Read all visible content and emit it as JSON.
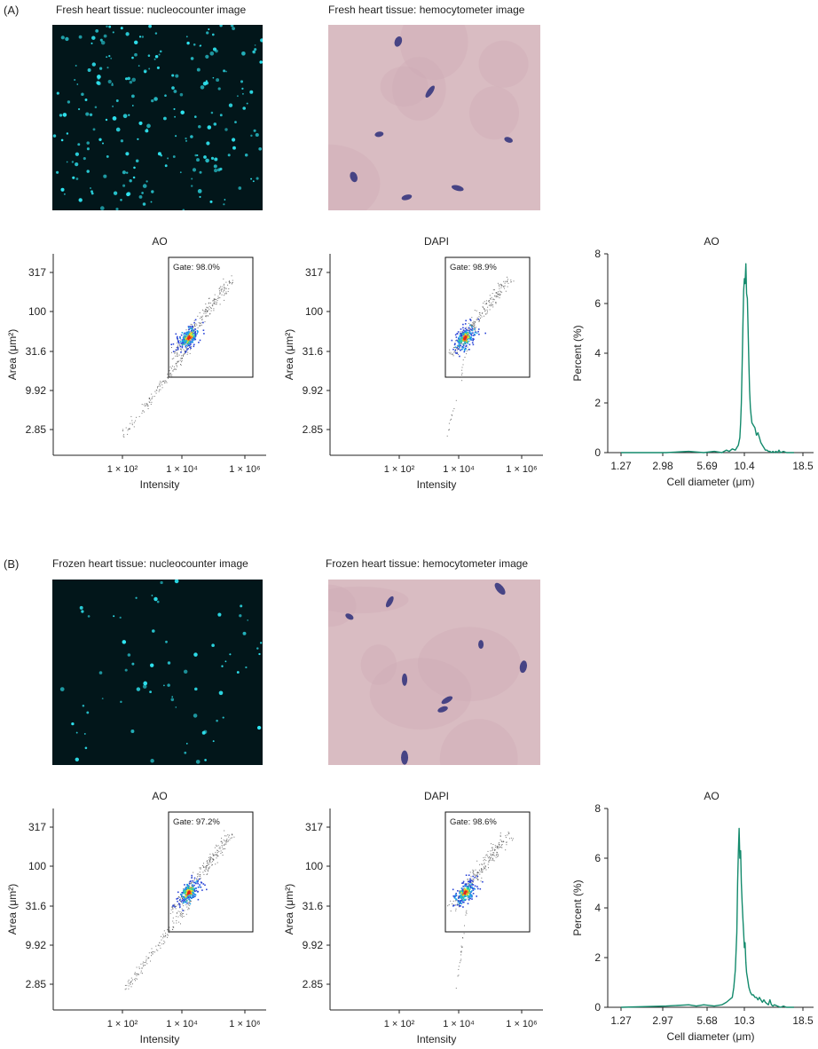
{
  "colors": {
    "fluo_bg": "#02161a",
    "fluo_dot": "#2fe6f2",
    "hemo_bg": "#d9bcc2",
    "hemo_cell": "#2d2f7a",
    "line": "#138a6c",
    "axis": "#222222",
    "gate_box": "#111111"
  },
  "panels": [
    {
      "label": "(A)",
      "nucleo_title": "Fresh heart tissue: nucleocounter image",
      "hemo_title": "Fresh heart tissue: hemocytometer image",
      "scatter_ao": {
        "title": "AO",
        "gate": "Gate: 98.0%",
        "xlabel": "Intensity",
        "ylabel": "Area (μm²)",
        "yticks": [
          "317",
          "100",
          "31.6",
          "9.92",
          "2.85"
        ],
        "xticks": [
          "1 × 10²",
          "1 × 10⁴",
          "1 × 10⁶"
        ],
        "tail_from_intensity": 100
      },
      "scatter_dapi": {
        "title": "DAPI",
        "gate": "Gate: 98.9%",
        "xlabel": "Intensity",
        "ylabel": "Area (μm²)",
        "yticks": [
          "317",
          "100",
          "31.6",
          "9.92",
          "2.85"
        ],
        "xticks": [
          "1 × 10²",
          "1 × 10⁴",
          "1 × 10⁶"
        ],
        "tail_from_intensity": 4000
      },
      "chart_data": {
        "type": "line",
        "title": "AO",
        "xlabel": "Cell diameter (μm)",
        "ylabel": "Percent (%)",
        "xtick_labels": [
          "1.27",
          "2.98",
          "5.69",
          "10.4",
          "18.5"
        ],
        "yticks": [
          0,
          2,
          4,
          6,
          8
        ],
        "ylim": [
          0,
          8
        ],
        "x_index": [
          0.0,
          0.3,
          0.45,
          0.55,
          0.62,
          0.67,
          0.7,
          0.72,
          0.74,
          0.76,
          0.77,
          0.78,
          0.79,
          0.795,
          0.8,
          0.805,
          0.81,
          0.815,
          0.82,
          0.825,
          0.83,
          0.835,
          0.84,
          0.845,
          0.85,
          0.855,
          0.86,
          0.865,
          0.87,
          0.88,
          0.89,
          0.9,
          0.91,
          0.92,
          0.93,
          0.94,
          0.95,
          0.96,
          0.97,
          0.98,
          0.99,
          1.0,
          1.01,
          1.02,
          1.03,
          1.04,
          1.05,
          1.06,
          1.08,
          1.1,
          1.12,
          1.15
        ],
        "values": [
          0.0,
          0.0,
          0.05,
          0.0,
          0.05,
          0.0,
          0.1,
          0.05,
          0.15,
          0.1,
          0.2,
          0.3,
          0.6,
          1.2,
          2.0,
          3.5,
          5.0,
          6.5,
          7.0,
          6.8,
          7.6,
          6.4,
          6.2,
          5.0,
          3.6,
          2.5,
          1.8,
          1.5,
          1.2,
          1.1,
          1.0,
          0.7,
          0.8,
          0.6,
          0.4,
          0.3,
          0.2,
          0.1,
          0.1,
          0.05,
          0.05,
          0.0,
          0.05,
          0.0,
          0.05,
          0.0,
          0.1,
          0.0,
          0.05,
          0.0,
          0.0,
          0.0
        ]
      }
    },
    {
      "label": "(B)",
      "nucleo_title": "Frozen heart tissue: nucleocounter image",
      "hemo_title": "Frozen heart tissue: hemocytometer image",
      "scatter_ao": {
        "title": "AO",
        "gate": "Gate: 97.2%",
        "xlabel": "Intensity",
        "ylabel": "Area (μm²)",
        "yticks": [
          "317",
          "100",
          "31.6",
          "9.92",
          "2.85"
        ],
        "xticks": [
          "1 × 10²",
          "1 × 10⁴",
          "1 × 10⁶"
        ],
        "tail_from_intensity": 120
      },
      "scatter_dapi": {
        "title": "DAPI",
        "gate": "Gate: 98.6%",
        "xlabel": "Intensity",
        "ylabel": "Area (μm²)",
        "yticks": [
          "317",
          "100",
          "31.6",
          "9.92",
          "2.85"
        ],
        "xticks": [
          "1 × 10²",
          "1 × 10⁴",
          "1 × 10⁶"
        ],
        "tail_from_intensity": 8000
      },
      "chart_data": {
        "type": "line",
        "title": "AO",
        "xlabel": "Cell diameter (μm)",
        "ylabel": "Percent (%)",
        "xtick_labels": [
          "1.27",
          "2.97",
          "5.68",
          "10.3",
          "18.5"
        ],
        "yticks": [
          0,
          2,
          4,
          6,
          8
        ],
        "ylim": [
          0,
          8
        ],
        "x_index": [
          0.0,
          0.3,
          0.45,
          0.5,
          0.55,
          0.62,
          0.67,
          0.7,
          0.72,
          0.74,
          0.75,
          0.76,
          0.77,
          0.775,
          0.78,
          0.785,
          0.79,
          0.795,
          0.8,
          0.805,
          0.81,
          0.815,
          0.82,
          0.825,
          0.83,
          0.835,
          0.84,
          0.85,
          0.86,
          0.87,
          0.88,
          0.89,
          0.9,
          0.91,
          0.92,
          0.93,
          0.94,
          0.95,
          0.96,
          0.97,
          0.98,
          0.99,
          1.0,
          1.01,
          1.02,
          1.04,
          1.06,
          1.08,
          1.1,
          1.13,
          1.15
        ],
        "values": [
          0.0,
          0.05,
          0.1,
          0.05,
          0.1,
          0.05,
          0.1,
          0.2,
          0.3,
          0.4,
          0.8,
          1.5,
          3.0,
          5.0,
          6.2,
          7.2,
          6.0,
          6.3,
          5.0,
          4.2,
          3.6,
          3.0,
          2.4,
          2.6,
          1.8,
          1.4,
          1.2,
          0.8,
          0.6,
          0.5,
          0.5,
          0.4,
          0.4,
          0.3,
          0.4,
          0.3,
          0.2,
          0.3,
          0.2,
          0.15,
          0.1,
          0.3,
          0.1,
          0.05,
          0.1,
          0.05,
          0.0,
          0.05,
          0.0,
          0.0,
          0.0
        ]
      }
    }
  ]
}
